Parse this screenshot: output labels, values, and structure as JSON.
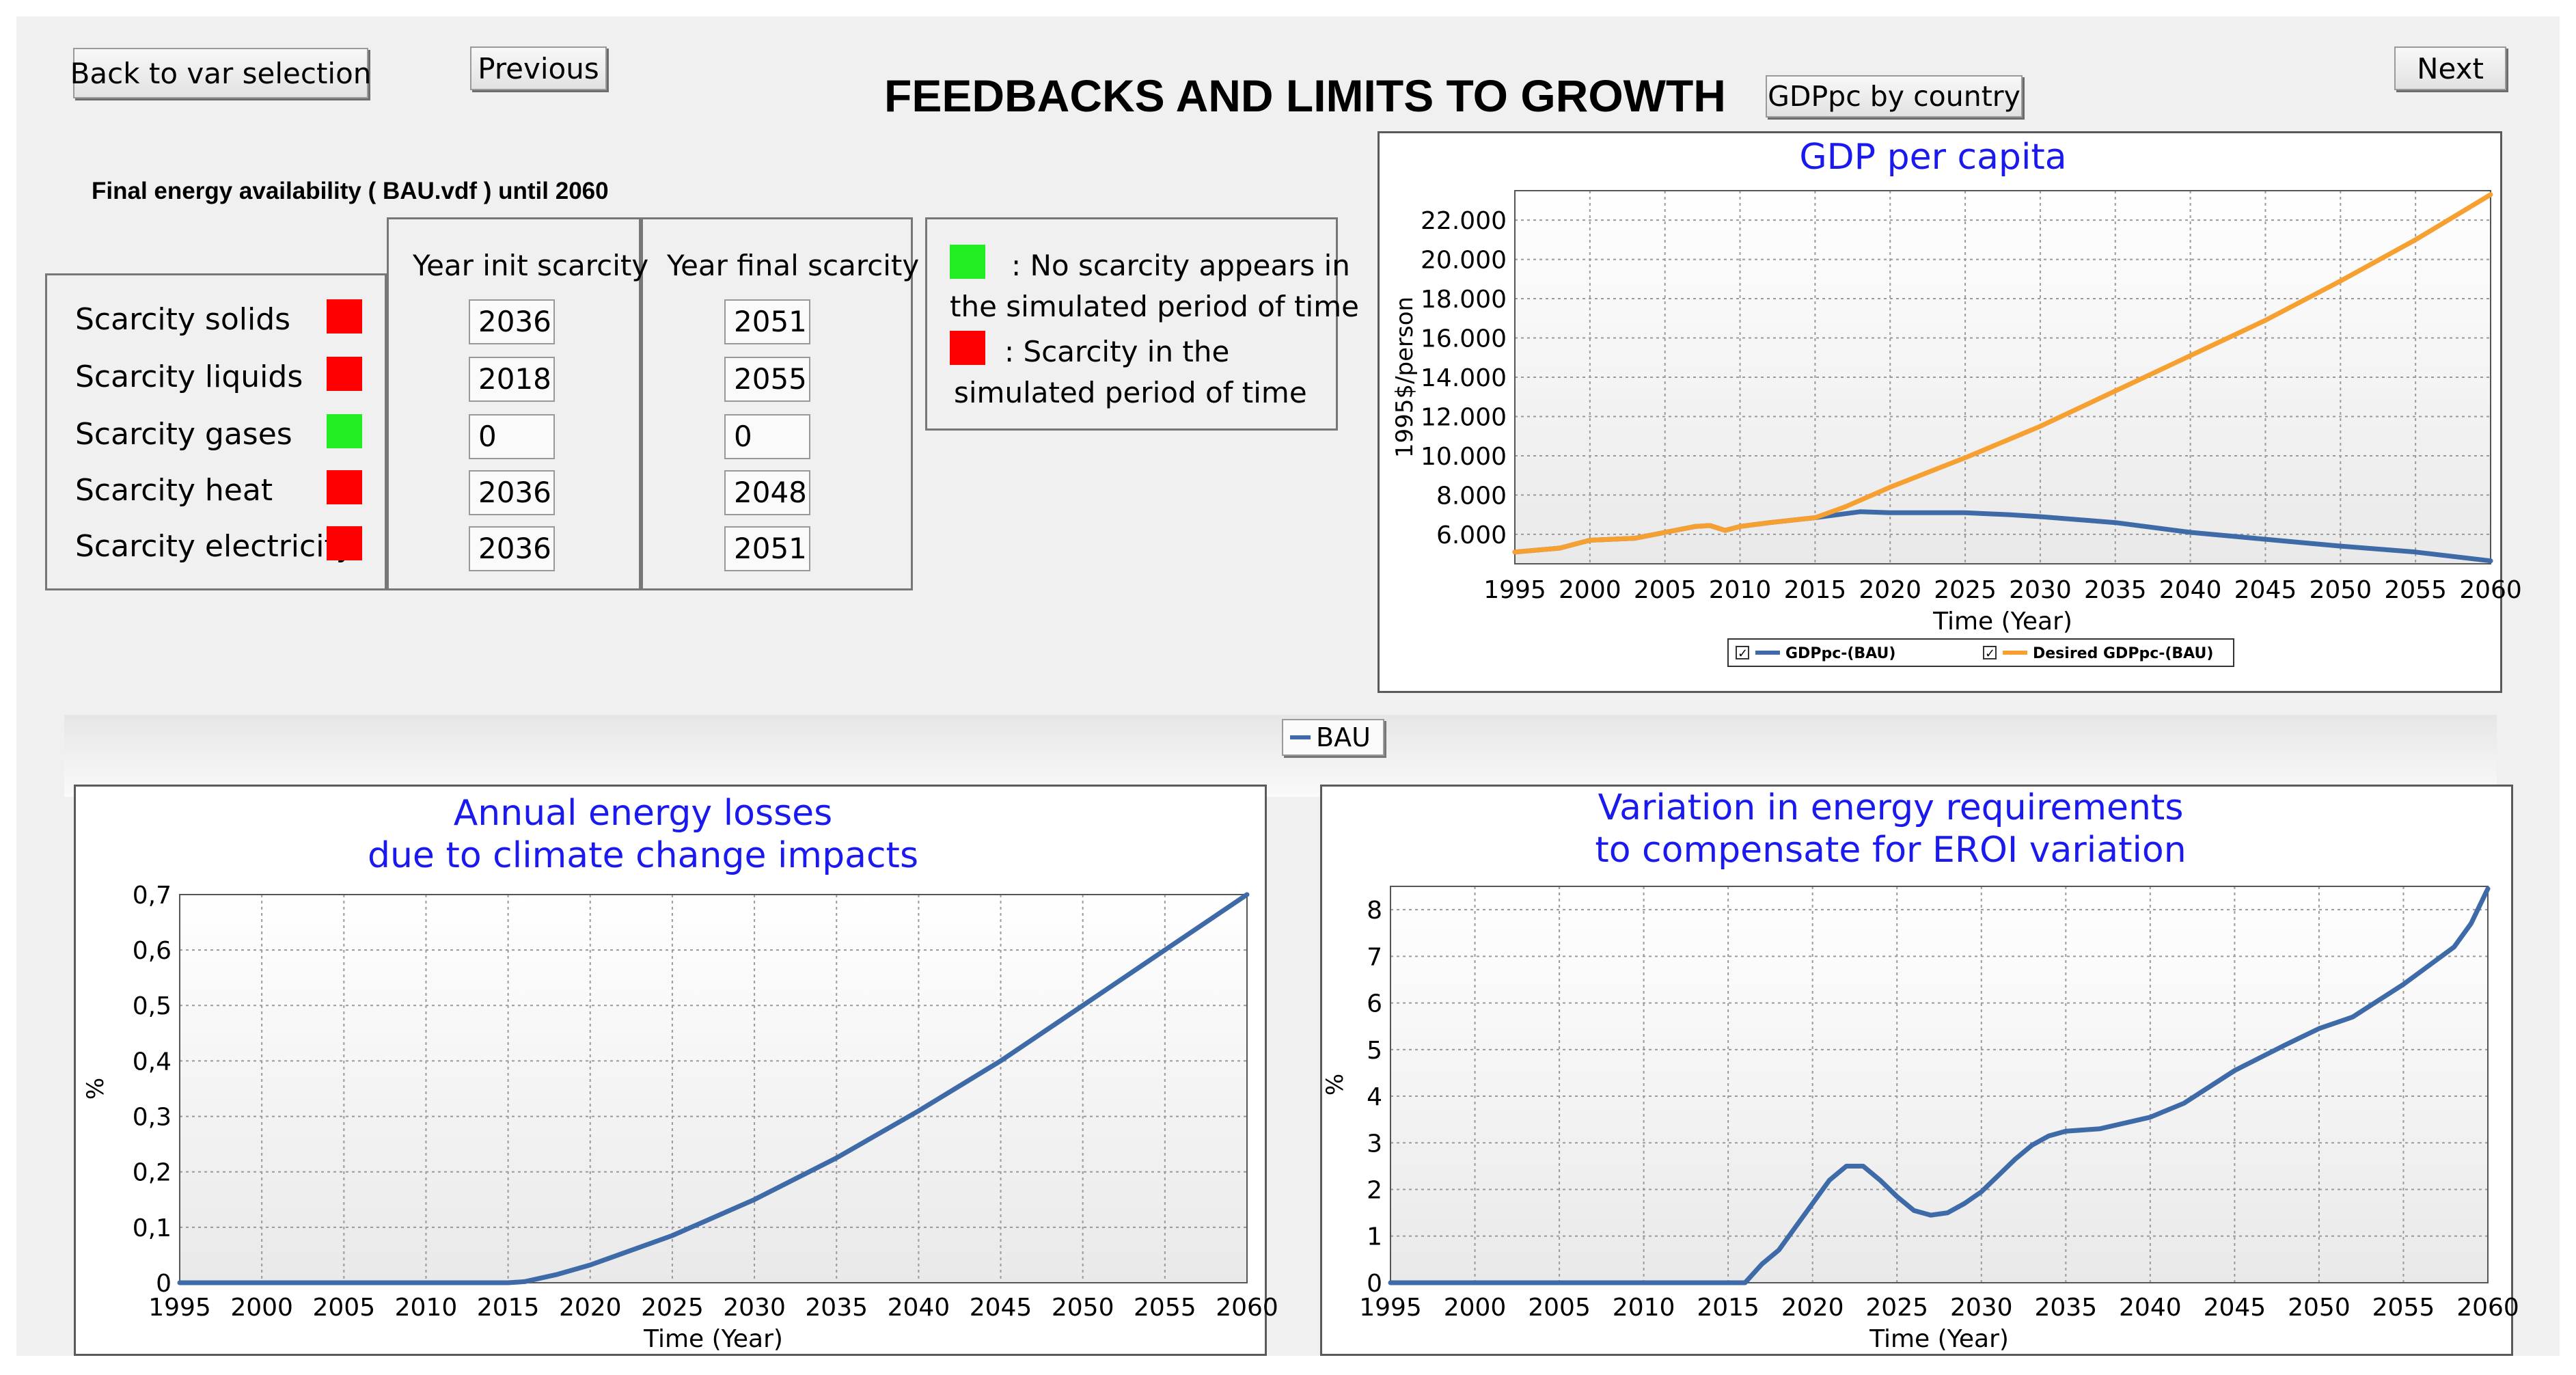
{
  "window": {
    "title": "FEEDBACKS AND LIMITS TO GROWTH"
  },
  "nav": {
    "back_label": "Back to var selection",
    "previous_label": "Previous",
    "next_label": "Next",
    "gdppc_country_label": "GDPpc by country"
  },
  "scarcity": {
    "subtitle": "Final energy availability ( BAU.vdf ) until 2060",
    "col_init": "Year init scarcity",
    "col_final": "Year final scarcity",
    "rows": [
      {
        "label": "Scarcity solids",
        "status": "scarcity",
        "color": "#ff0000",
        "init": "2036",
        "final": "2051"
      },
      {
        "label": "Scarcity liquids",
        "status": "scarcity",
        "color": "#ff0000",
        "init": "2018",
        "final": "2055"
      },
      {
        "label": "Scarcity gases",
        "status": "no-scarcity",
        "color": "#22ee22",
        "init": "0",
        "final": "0"
      },
      {
        "label": "Scarcity heat",
        "status": "scarcity",
        "color": "#ff0000",
        "init": "2036",
        "final": "2048"
      },
      {
        "label": "Scarcity electricity",
        "status": "scarcity",
        "color": "#ff0000",
        "init": "2036",
        "final": "2051"
      }
    ],
    "legend": {
      "green_color": "#22ee22",
      "red_color": "#ff0000",
      "green_line1": ": No scarcity appears in",
      "green_line2": "the simulated period of time",
      "red_line1": ": Scarcity in the",
      "red_line2": "simulated period of time"
    }
  },
  "scenario_legend": {
    "label": "BAU",
    "color": "#3e6aa8"
  },
  "chart_data": [
    {
      "id": "gdp",
      "type": "line",
      "title": "GDP per capita",
      "title_lines": [
        "GDP per capita"
      ],
      "xlabel": "Time (Year)",
      "ylabel": "1995$/person",
      "xlim": [
        1995,
        2060
      ],
      "ylim": [
        4500,
        23500
      ],
      "xticks": [
        1995,
        2000,
        2005,
        2010,
        2015,
        2020,
        2025,
        2030,
        2035,
        2040,
        2045,
        2050,
        2055,
        2060
      ],
      "yticks": [
        6000,
        8000,
        10000,
        12000,
        14000,
        16000,
        18000,
        20000,
        22000
      ],
      "ytick_labels": [
        "6.000",
        "8.000",
        "10.000",
        "12.000",
        "14.000",
        "16.000",
        "18.000",
        "20.000",
        "22.000"
      ],
      "series": [
        {
          "name": "GDPpc-(BAU)",
          "color": "#3e6aa8",
          "x": [
            1995,
            1998,
            2000,
            2003,
            2005,
            2007,
            2008,
            2009,
            2010,
            2012,
            2015,
            2017,
            2018,
            2020,
            2025,
            2028,
            2030,
            2035,
            2040,
            2045,
            2050,
            2055,
            2060
          ],
          "y": [
            5100,
            5300,
            5700,
            5800,
            6100,
            6400,
            6450,
            6200,
            6400,
            6600,
            6850,
            7050,
            7150,
            7100,
            7100,
            7000,
            6900,
            6600,
            6100,
            5750,
            5400,
            5100,
            4650
          ]
        },
        {
          "name": "Desired GDPpc-(BAU)",
          "color": "#f5a030",
          "x": [
            1995,
            1998,
            2000,
            2003,
            2005,
            2007,
            2008,
            2009,
            2010,
            2012,
            2015,
            2017,
            2020,
            2025,
            2030,
            2035,
            2040,
            2045,
            2050,
            2055,
            2060
          ],
          "y": [
            5100,
            5300,
            5700,
            5800,
            6100,
            6400,
            6450,
            6200,
            6400,
            6600,
            6850,
            7400,
            8400,
            9900,
            11500,
            13300,
            15100,
            16900,
            18900,
            21000,
            23300
          ]
        }
      ],
      "legend_items": [
        "GDPpc-(BAU)",
        "Desired GDPpc-(BAU)"
      ]
    },
    {
      "id": "losses",
      "type": "line",
      "title": "Annual energy losses due to climate change impacts",
      "title_lines": [
        "Annual energy losses",
        "due to climate change impacts"
      ],
      "xlabel": "Time (Year)",
      "ylabel": "%",
      "xlim": [
        1995,
        2060
      ],
      "ylim": [
        0,
        0.7
      ],
      "xticks": [
        1995,
        2000,
        2005,
        2010,
        2015,
        2020,
        2025,
        2030,
        2035,
        2040,
        2045,
        2050,
        2055,
        2060
      ],
      "yticks": [
        0,
        0.1,
        0.2,
        0.3,
        0.4,
        0.5,
        0.6,
        0.7
      ],
      "ytick_labels": [
        "0",
        "0,1",
        "0,2",
        "0,3",
        "0,4",
        "0,5",
        "0,6",
        "0,7"
      ],
      "series": [
        {
          "name": "BAU",
          "color": "#3e6aa8",
          "x": [
            1995,
            2015,
            2016,
            2018,
            2020,
            2025,
            2030,
            2035,
            2040,
            2045,
            2050,
            2055,
            2060
          ],
          "y": [
            0,
            0,
            0.002,
            0.015,
            0.032,
            0.085,
            0.15,
            0.225,
            0.31,
            0.4,
            0.5,
            0.6,
            0.7
          ]
        }
      ]
    },
    {
      "id": "eroi",
      "type": "line",
      "title": "Variation in energy requirements to compensate for EROI variation",
      "title_lines": [
        "Variation in energy requirements",
        "to compensate for EROI variation"
      ],
      "xlabel": "Time (Year)",
      "ylabel": "%",
      "xlim": [
        1995,
        2060
      ],
      "ylim": [
        0,
        8.5
      ],
      "xticks": [
        1995,
        2000,
        2005,
        2010,
        2015,
        2020,
        2025,
        2030,
        2035,
        2040,
        2045,
        2050,
        2055,
        2060
      ],
      "yticks": [
        0,
        1,
        2,
        3,
        4,
        5,
        6,
        7,
        8
      ],
      "ytick_labels": [
        "0",
        "1",
        "2",
        "3",
        "4",
        "5",
        "6",
        "7",
        "8"
      ],
      "series": [
        {
          "name": "BAU",
          "color": "#3e6aa8",
          "x": [
            1995,
            2016,
            2017,
            2018,
            2019,
            2020,
            2021,
            2022,
            2023,
            2024,
            2025,
            2026,
            2027,
            2028,
            2029,
            2030,
            2031,
            2032,
            2033,
            2034,
            2035,
            2037,
            2040,
            2042,
            2045,
            2048,
            2050,
            2052,
            2055,
            2058,
            2059,
            2060
          ],
          "y": [
            0,
            0,
            0.4,
            0.7,
            1.2,
            1.7,
            2.2,
            2.5,
            2.5,
            2.2,
            1.85,
            1.55,
            1.45,
            1.5,
            1.7,
            1.95,
            2.3,
            2.65,
            2.95,
            3.15,
            3.25,
            3.3,
            3.55,
            3.85,
            4.55,
            5.1,
            5.45,
            5.7,
            6.4,
            7.2,
            7.7,
            8.45
          ]
        }
      ]
    }
  ]
}
